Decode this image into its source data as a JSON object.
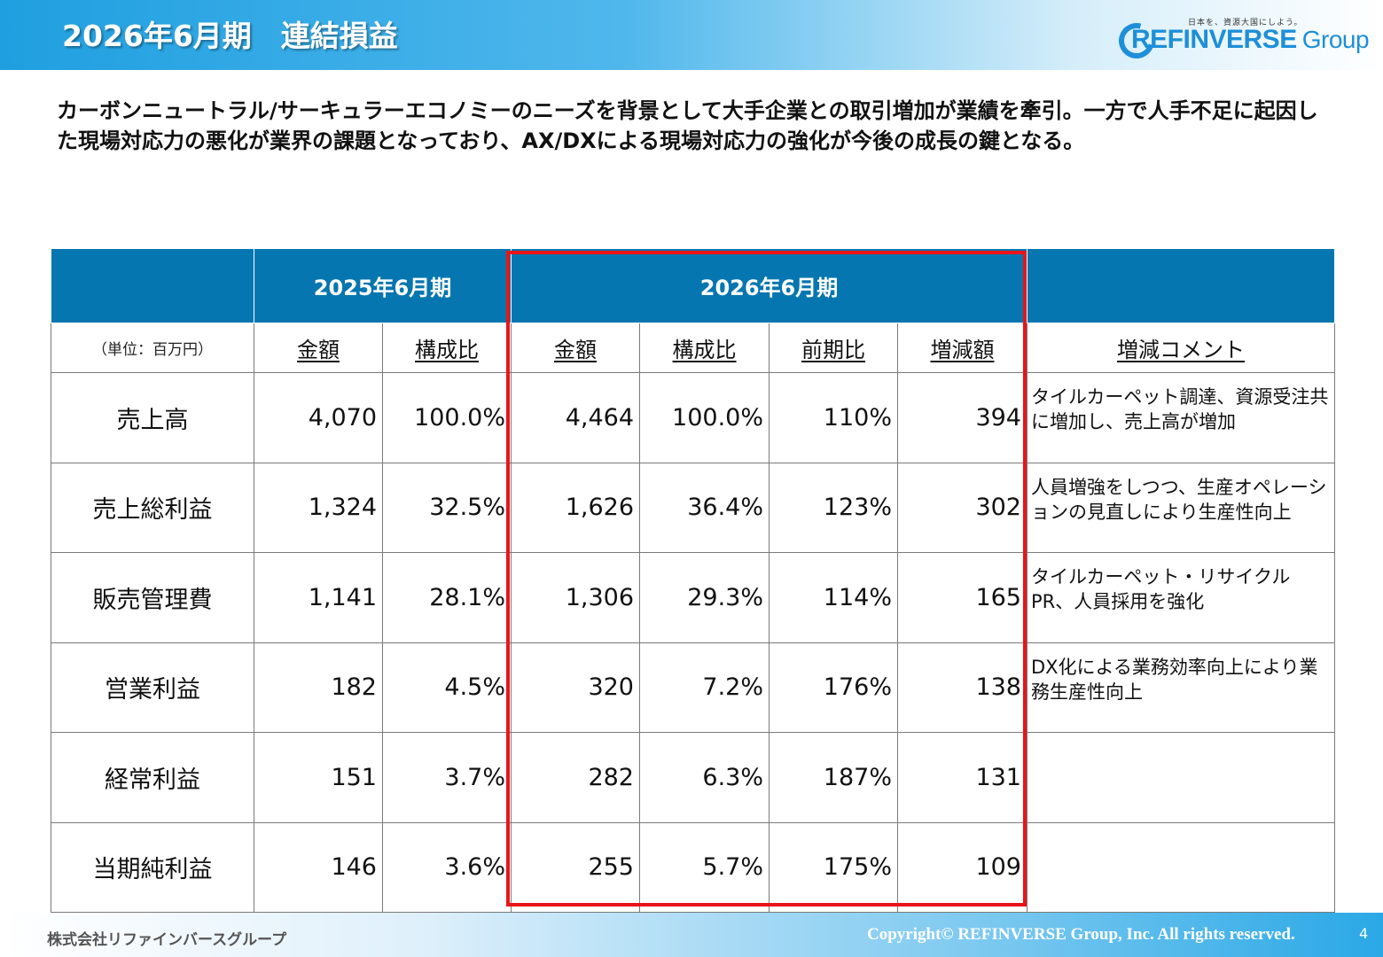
{
  "header": {
    "title": "2026年6月期　連結損益",
    "logo_tagline": "日本を、資源大国にしよう。",
    "logo_name": "REFINVERSE",
    "logo_group": "Group"
  },
  "lead_text": "カーボンニュートラル/サーキュラーエコノミーのニーズを背景として大手企業との取引増加が業績を牽引。一方で人手不足に起因した現場対応力の悪化が業界の課題となっており、AX/DXによる現場対応力の強化が今後の成長の鍵となる。",
  "table": {
    "period_prev": "2025年6月期",
    "period_curr": "2026年6月期",
    "unit": "（単位：百万円）",
    "col_amount": "金額",
    "col_ratio": "構成比",
    "col_yoy": "前期比",
    "col_diff": "増減額",
    "col_comment": "増減コメント",
    "rows": [
      {
        "label": "売上高",
        "prev_amount": "4,070",
        "prev_ratio": "100.0%",
        "curr_amount": "4,464",
        "curr_ratio": "100.0%",
        "yoy": "110%",
        "diff": "394",
        "comment": "タイルカーペット調達、資源受注共に増加し、売上高が増加"
      },
      {
        "label": "売上総利益",
        "prev_amount": "1,324",
        "prev_ratio": "32.5%",
        "curr_amount": "1,626",
        "curr_ratio": "36.4%",
        "yoy": "123%",
        "diff": "302",
        "comment": "人員増強をしつつ、生産オペレーションの見直しにより生産性向上"
      },
      {
        "label": "販売管理費",
        "prev_amount": "1,141",
        "prev_ratio": "28.1%",
        "curr_amount": "1,306",
        "curr_ratio": "29.3%",
        "yoy": "114%",
        "diff": "165",
        "comment": "タイルカーペット・リサイクルPR、人員採用を強化"
      },
      {
        "label": "営業利益",
        "prev_amount": "182",
        "prev_ratio": "4.5%",
        "curr_amount": "320",
        "curr_ratio": "7.2%",
        "yoy": "176%",
        "diff": "138",
        "comment": "DX化による業務効率向上により業務生産性向上"
      },
      {
        "label": "経常利益",
        "prev_amount": "151",
        "prev_ratio": "3.7%",
        "curr_amount": "282",
        "curr_ratio": "6.3%",
        "yoy": "187%",
        "diff": "131",
        "comment": ""
      },
      {
        "label": "当期純利益",
        "prev_amount": "146",
        "prev_ratio": "3.6%",
        "curr_amount": "255",
        "curr_ratio": "5.7%",
        "yoy": "175%",
        "diff": "109",
        "comment": ""
      }
    ]
  },
  "footer": {
    "company": "株式会社リファインバースグループ",
    "copyright": "Copyright© REFINVERSE Group, Inc. All rights reserved.",
    "page": "4"
  },
  "colors": {
    "header_blue": "#0676b0",
    "highlight_red": "#e8141a",
    "logo_blue": "#1e8fd8"
  }
}
